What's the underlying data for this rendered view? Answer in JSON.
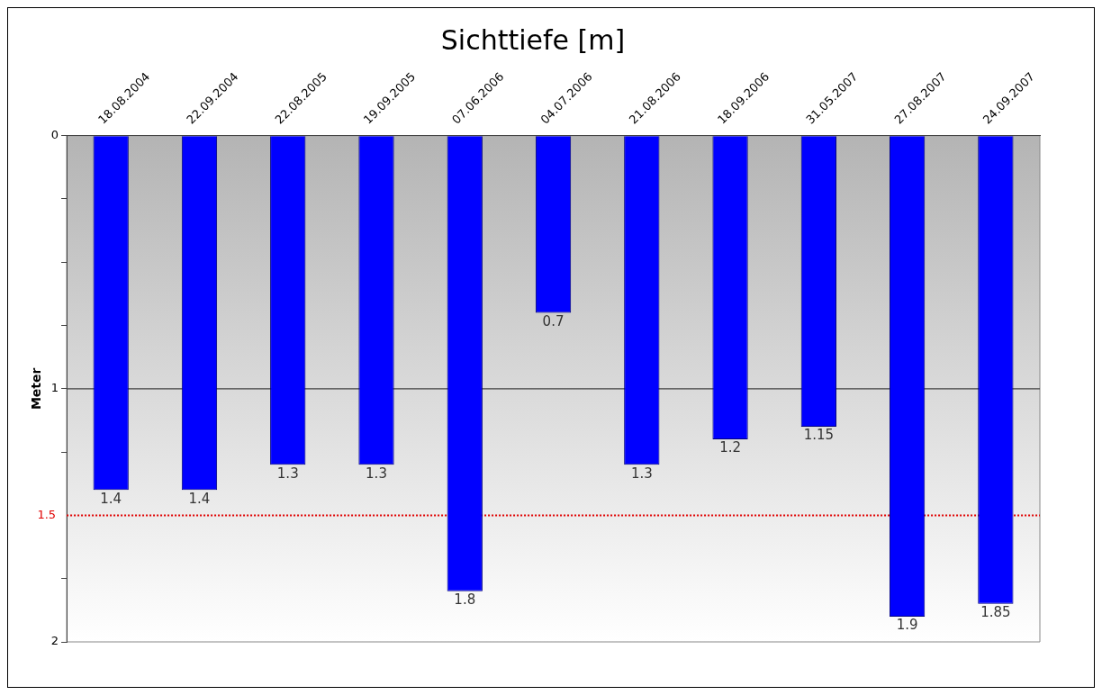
{
  "chart_data": {
    "type": "bar",
    "title": "Sichttiefe [m]",
    "ylabel": "Meter",
    "categories": [
      "18.08.2004",
      "22.09.2004",
      "22.08.2005",
      "19.09.2005",
      "07.06.2006",
      "04.07.2006",
      "21.08.2006",
      "18.09.2006",
      "31.05.2007",
      "27.08.2007",
      "24.09.2007"
    ],
    "values": [
      1.4,
      1.4,
      1.3,
      1.3,
      1.8,
      0.7,
      1.3,
      1.2,
      1.15,
      1.9,
      1.85
    ],
    "color": "#0000ff",
    "ylim": [
      2,
      0
    ],
    "yticks": [
      0,
      {
        "value": 0.25,
        "label": null
      },
      {
        "value": 0.5,
        "label": null
      },
      {
        "value": 0.75,
        "label": null
      },
      1,
      {
        "value": 1.25,
        "label": null
      },
      {
        "value": 1.75,
        "label": null
      },
      2
    ],
    "ref_lines": [
      {
        "axis": "y",
        "value": 1,
        "label": null,
        "color": "#404040",
        "line_style": "solid"
      },
      {
        "axis": "y",
        "value": 1.5,
        "label": "1.5",
        "color": "#e00000",
        "line_style": "dotted"
      }
    ],
    "data_labels": true,
    "grid": false,
    "legend": false
  }
}
